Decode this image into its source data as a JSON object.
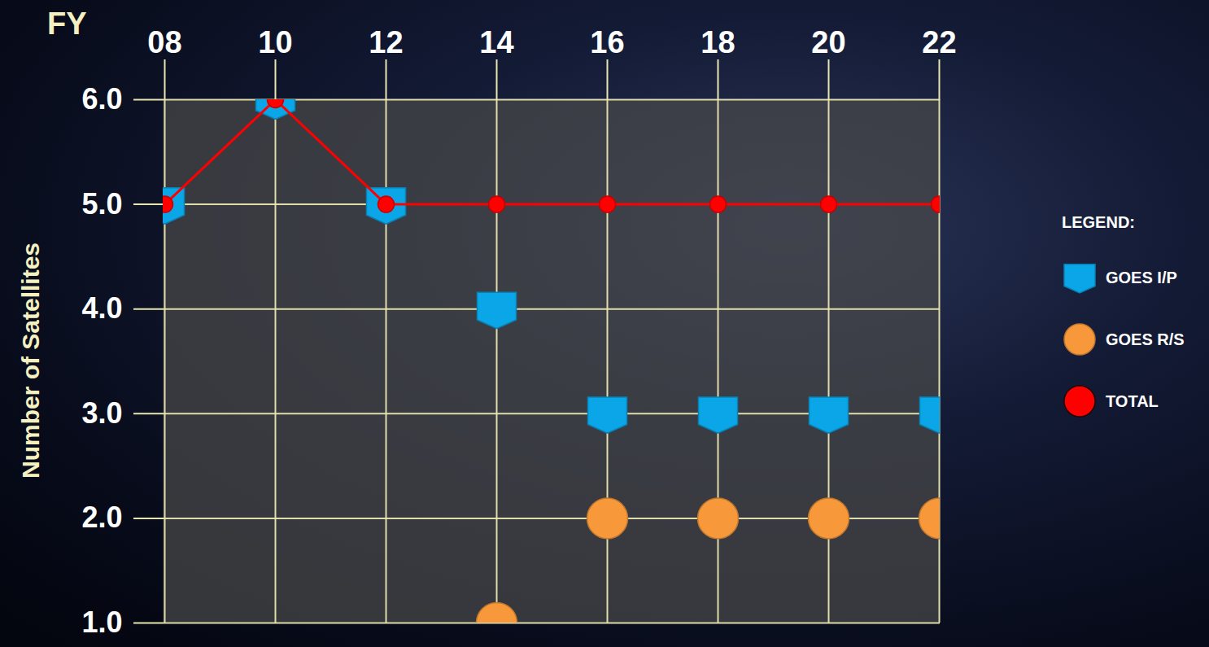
{
  "chart_data": {
    "type": "line",
    "x_label": "FY",
    "y_label": "Number of Satellites",
    "categories": [
      "08",
      "10",
      "12",
      "14",
      "16",
      "18",
      "20",
      "22"
    ],
    "series": [
      {
        "name": "GOES I/P",
        "type": "scatter",
        "marker": "shield",
        "color": "#0aa6e8",
        "values": [
          5,
          6,
          5,
          4,
          3,
          3,
          3,
          3
        ]
      },
      {
        "name": "GOES R/S",
        "type": "scatter",
        "marker": "circle",
        "color": "#f7993a",
        "values": [
          null,
          null,
          null,
          1,
          2,
          2,
          2,
          2
        ]
      },
      {
        "name": "TOTAL",
        "type": "line",
        "marker": "circle",
        "color": "#ff0000",
        "values": [
          5,
          6,
          5,
          5,
          5,
          5,
          5,
          5
        ]
      }
    ],
    "ylim": [
      1,
      6
    ],
    "yticks": [
      1,
      2,
      3,
      4,
      5,
      6
    ],
    "grid": true,
    "legend": "right",
    "legend_title": "LEGEND:"
  }
}
